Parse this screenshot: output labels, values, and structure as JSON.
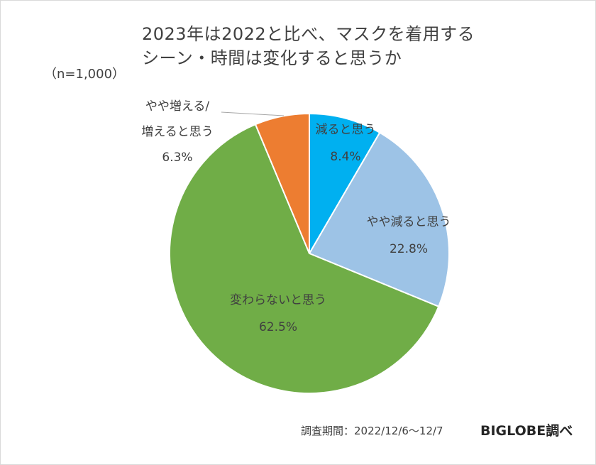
{
  "chart_data": {
    "type": "pie",
    "title": "2023年は2022と比べ、マスクを着用する シーン・時間は変化すると思うか",
    "title_lines": [
      "2023年は2022と比べ、マスクを着用する",
      "シーン・時間は変化すると思うか"
    ],
    "sample_size": "（n=1,000）",
    "start": "top (12 o'clock)",
    "direction": "clockwise",
    "slices": [
      {
        "label_lines": [
          "減ると思う"
        ],
        "value": 8.4,
        "value_label": "8.4%",
        "color": "#00b0f0"
      },
      {
        "label_lines": [
          "やや減ると思う"
        ],
        "value": 22.8,
        "value_label": "22.8%",
        "color": "#9dc3e6"
      },
      {
        "label_lines": [
          "変わらないと思う"
        ],
        "value": 62.5,
        "value_label": "62.5%",
        "color": "#70ad47"
      },
      {
        "label_lines": [
          "やや増える/",
          "増えると思う"
        ],
        "value": 6.3,
        "value_label": "6.3%",
        "color": "#ed7d31"
      }
    ]
  },
  "footer": {
    "survey_period": "調査期間：2022/12/6～12/7",
    "source": "BIGLOBE調べ"
  }
}
